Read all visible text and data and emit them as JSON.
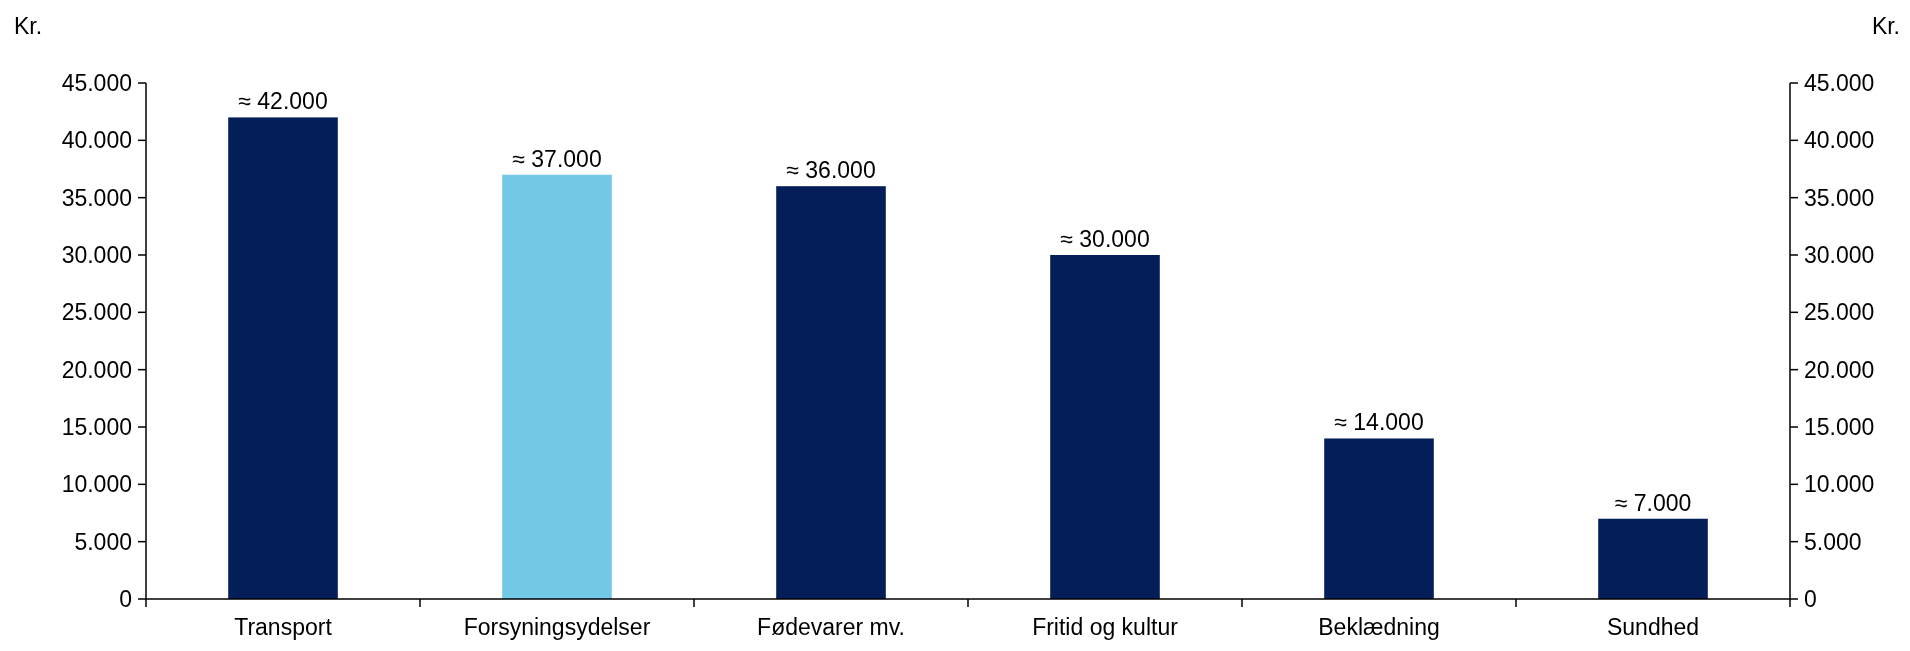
{
  "chart_data": {
    "type": "bar",
    "ylabel": "Kr.",
    "y2label": "Kr.",
    "categories": [
      "Transport",
      "Forsyningsydelser",
      "Fødevarer mv.",
      "Fritid og kultur",
      "Beklædning",
      "Sundhed"
    ],
    "values": [
      42000,
      37000,
      36000,
      30000,
      14000,
      7000
    ],
    "colors": [
      "#041e5a",
      "#73c8e6",
      "#041e5a",
      "#041e5a",
      "#041e5a",
      "#041e5a"
    ],
    "value_labels": [
      "≈ 42.000",
      "≈ 37.000",
      "≈ 36.000",
      "≈ 30.000",
      "≈ 14.000",
      "≈ 7.000"
    ],
    "ylim": [
      0,
      45000
    ],
    "yticks": [
      {
        "value": 0,
        "label": "0"
      },
      {
        "value": 5000,
        "label": "5.000"
      },
      {
        "value": 10000,
        "label": "10.000"
      },
      {
        "value": 15000,
        "label": "15.000"
      },
      {
        "value": 20000,
        "label": "20.000"
      },
      {
        "value": 25000,
        "label": "25.000"
      },
      {
        "value": 30000,
        "label": "30.000"
      },
      {
        "value": 35000,
        "label": "35.000"
      },
      {
        "value": 40000,
        "label": "40.000"
      },
      {
        "value": 45000,
        "label": "45.000"
      }
    ],
    "y2lim": [
      0,
      45000
    ],
    "y2ticks": [
      {
        "value": 0,
        "label": "0"
      },
      {
        "value": 5000,
        "label": "5.000"
      },
      {
        "value": 10000,
        "label": "10.000"
      },
      {
        "value": 15000,
        "label": "15.000"
      },
      {
        "value": 20000,
        "label": "20.000"
      },
      {
        "value": 25000,
        "label": "25.000"
      },
      {
        "value": 30000,
        "label": "30.000"
      },
      {
        "value": 35000,
        "label": "35.000"
      },
      {
        "value": 40000,
        "label": "40.000"
      },
      {
        "value": 45000,
        "label": "45.000"
      }
    ],
    "grid": false
  }
}
